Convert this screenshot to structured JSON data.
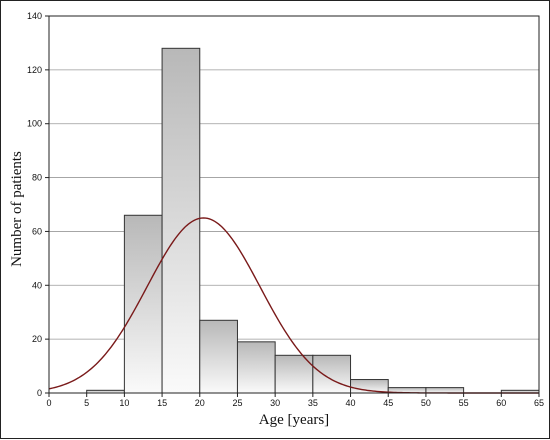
{
  "chart_data": {
    "type": "bar",
    "title": "",
    "xlabel": "Age [years]",
    "ylabel": "Number of patients",
    "xlim": [
      0,
      65
    ],
    "ylim": [
      0,
      140
    ],
    "x_ticks": [
      "0",
      "5",
      "10",
      "15",
      "20",
      "25",
      "30",
      "35",
      "40",
      "45",
      "50",
      "55",
      "60",
      "65"
    ],
    "y_ticks": [
      "0",
      "20",
      "40",
      "60",
      "80",
      "100",
      "120",
      "140"
    ],
    "grid": true,
    "bins": [
      {
        "from": 5,
        "to": 10,
        "value": 1
      },
      {
        "from": 10,
        "to": 15,
        "value": 66
      },
      {
        "from": 15,
        "to": 20,
        "value": 128
      },
      {
        "from": 20,
        "to": 25,
        "value": 27
      },
      {
        "from": 25,
        "to": 30,
        "value": 19
      },
      {
        "from": 30,
        "to": 35,
        "value": 14
      },
      {
        "from": 35,
        "to": 40,
        "value": 14
      },
      {
        "from": 40,
        "to": 45,
        "value": 5
      },
      {
        "from": 45,
        "to": 50,
        "value": 2
      },
      {
        "from": 50,
        "to": 55,
        "value": 2
      },
      {
        "from": 60,
        "to": 65,
        "value": 1
      }
    ],
    "normal_curve": {
      "mean": 20.5,
      "sd": 7.5,
      "peak": 65
    },
    "colors": {
      "bar_stroke": "#333333",
      "curve": "#7a1a1a",
      "grid": "#9a9a9a"
    }
  }
}
